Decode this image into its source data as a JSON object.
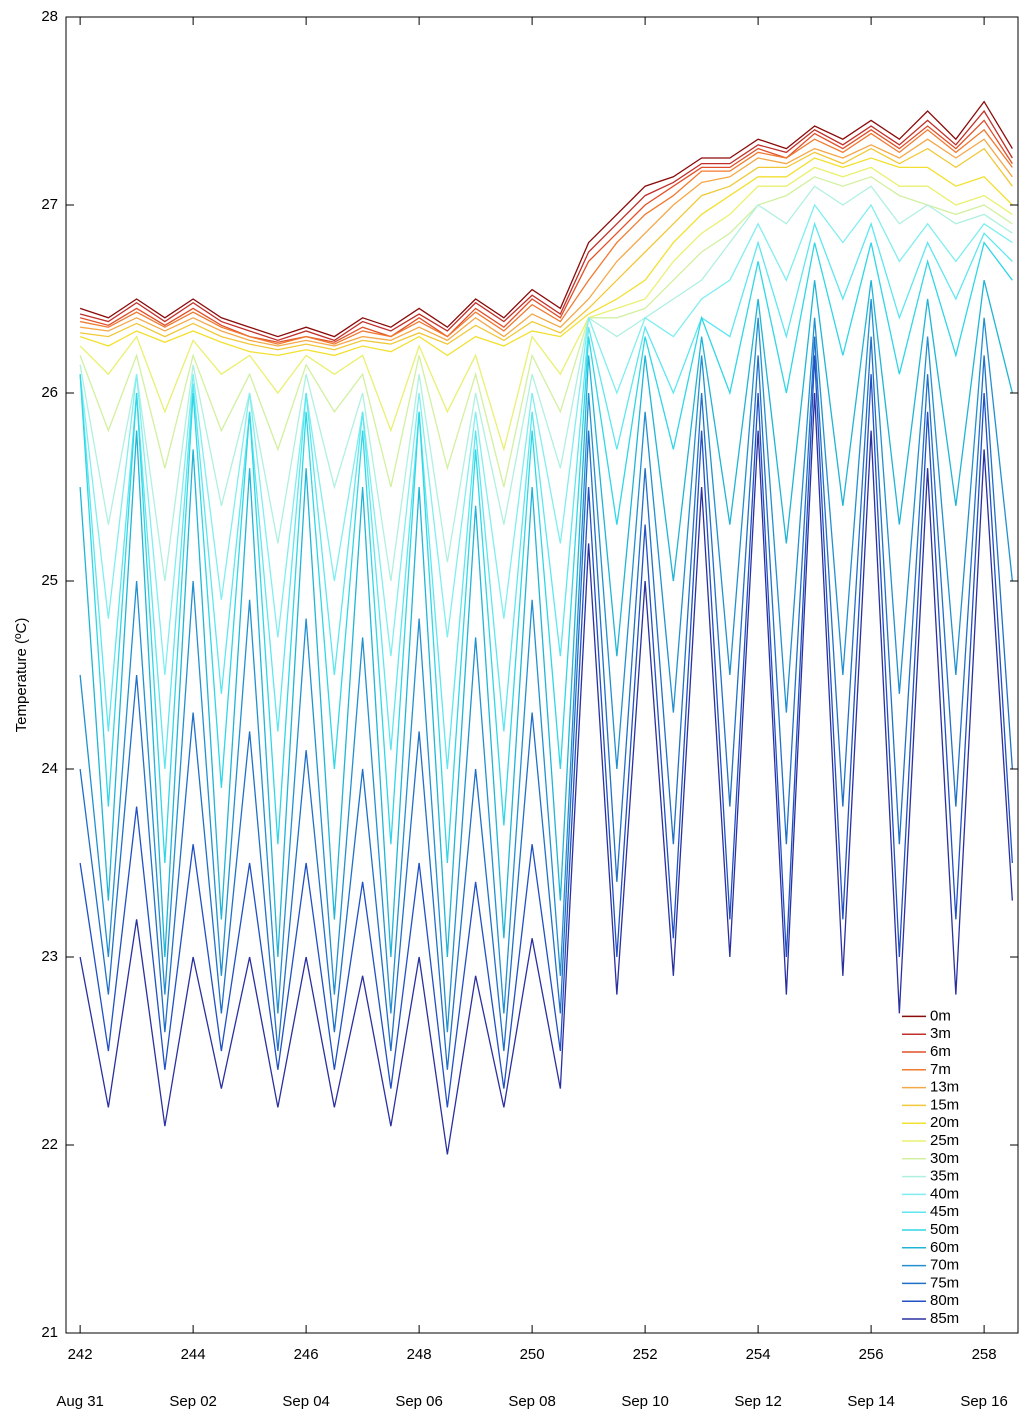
{
  "chart_data": {
    "type": "line",
    "ylabel": "Temperature (ºC)",
    "xlim": [
      241.75,
      258.6
    ],
    "ylim": [
      21,
      28
    ],
    "xticks": [
      242,
      244,
      246,
      248,
      250,
      252,
      254,
      256,
      258
    ],
    "xtick_dates": [
      "Aug 31",
      "Sep 02",
      "Sep 04",
      "Sep 06",
      "Sep 08",
      "Sep 10",
      "Sep 12",
      "Sep 14",
      "Sep 16"
    ],
    "yticks": [
      21,
      22,
      23,
      24,
      25,
      26,
      27,
      28
    ],
    "legend": "lower right",
    "x": [
      242,
      242.5,
      243,
      243.5,
      244,
      244.5,
      245,
      245.5,
      246,
      246.5,
      247,
      247.5,
      248,
      248.5,
      249,
      249.5,
      250,
      250.5,
      251,
      251.5,
      252,
      252.5,
      253,
      253.5,
      254,
      254.5,
      255,
      255.5,
      256,
      256.5,
      257,
      257.5,
      258,
      258.5
    ],
    "series": [
      {
        "name": "0m",
        "color": "#8b0a0a",
        "values": [
          26.45,
          26.4,
          26.5,
          26.4,
          26.5,
          26.4,
          26.35,
          26.3,
          26.35,
          26.3,
          26.4,
          26.35,
          26.45,
          26.35,
          26.5,
          26.4,
          26.55,
          26.45,
          26.8,
          26.95,
          27.1,
          27.15,
          27.25,
          27.25,
          27.35,
          27.3,
          27.42,
          27.35,
          27.45,
          27.35,
          27.5,
          27.35,
          27.55,
          27.3
        ]
      },
      {
        "name": "3m",
        "color": "#c0302a",
        "values": [
          26.42,
          26.38,
          26.48,
          26.38,
          26.48,
          26.38,
          26.33,
          26.28,
          26.33,
          26.28,
          26.38,
          26.33,
          26.42,
          26.33,
          26.48,
          26.38,
          26.52,
          26.42,
          26.75,
          26.9,
          27.05,
          27.12,
          27.22,
          27.22,
          27.32,
          27.28,
          27.4,
          27.32,
          27.42,
          27.32,
          27.45,
          27.32,
          27.5,
          27.25
        ]
      },
      {
        "name": "6m",
        "color": "#e0502a",
        "values": [
          26.4,
          26.36,
          26.45,
          26.36,
          26.45,
          26.36,
          26.3,
          26.27,
          26.3,
          26.27,
          26.35,
          26.3,
          26.4,
          26.3,
          26.45,
          26.35,
          26.5,
          26.4,
          26.7,
          26.85,
          27.0,
          27.1,
          27.2,
          27.2,
          27.3,
          27.25,
          27.38,
          27.3,
          27.4,
          27.3,
          27.42,
          27.3,
          27.45,
          27.22
        ]
      },
      {
        "name": "7m",
        "color": "#f07a30",
        "values": [
          26.38,
          26.35,
          26.43,
          26.35,
          26.43,
          26.35,
          26.3,
          26.26,
          26.3,
          26.26,
          26.33,
          26.3,
          26.38,
          26.3,
          26.43,
          26.33,
          26.47,
          26.38,
          26.6,
          26.8,
          26.95,
          27.05,
          27.18,
          27.18,
          27.28,
          27.25,
          27.35,
          27.28,
          27.38,
          27.28,
          27.4,
          27.28,
          27.4,
          27.2
        ]
      },
      {
        "name": "13m",
        "color": "#f4a848",
        "values": [
          26.35,
          26.33,
          26.4,
          26.33,
          26.4,
          26.33,
          26.28,
          26.25,
          26.28,
          26.25,
          26.3,
          26.28,
          26.35,
          26.28,
          26.4,
          26.3,
          26.42,
          26.35,
          26.5,
          26.7,
          26.85,
          27.0,
          27.12,
          27.15,
          27.25,
          27.22,
          27.3,
          27.25,
          27.32,
          27.25,
          27.35,
          27.25,
          27.35,
          27.15
        ]
      },
      {
        "name": "15m",
        "color": "#f0c838",
        "values": [
          26.32,
          26.3,
          26.37,
          26.3,
          26.37,
          26.3,
          26.26,
          26.23,
          26.26,
          26.23,
          26.28,
          26.26,
          26.32,
          26.26,
          26.36,
          26.28,
          26.38,
          26.32,
          26.45,
          26.6,
          26.75,
          26.9,
          27.05,
          27.1,
          27.2,
          27.2,
          27.28,
          27.22,
          27.3,
          27.22,
          27.3,
          27.2,
          27.3,
          27.1
        ]
      },
      {
        "name": "20m",
        "color": "#f2e030",
        "values": [
          26.3,
          26.25,
          26.33,
          26.27,
          26.33,
          26.27,
          26.22,
          26.2,
          26.23,
          26.2,
          26.25,
          26.22,
          26.3,
          26.2,
          26.3,
          26.25,
          26.33,
          26.3,
          26.42,
          26.5,
          26.6,
          26.8,
          26.95,
          27.05,
          27.15,
          27.15,
          27.25,
          27.2,
          27.25,
          27.2,
          27.2,
          27.1,
          27.15,
          27.0
        ]
      },
      {
        "name": "25m",
        "color": "#eaf070",
        "values": [
          26.25,
          26.1,
          26.3,
          25.9,
          26.28,
          26.1,
          26.2,
          26.0,
          26.2,
          26.1,
          26.2,
          25.8,
          26.25,
          25.9,
          26.2,
          25.7,
          26.3,
          26.1,
          26.4,
          26.45,
          26.5,
          26.7,
          26.85,
          26.95,
          27.1,
          27.1,
          27.2,
          27.15,
          27.2,
          27.1,
          27.1,
          27.0,
          27.05,
          26.95
        ]
      },
      {
        "name": "30m",
        "color": "#d2f0a0",
        "values": [
          26.2,
          25.8,
          26.2,
          25.6,
          26.2,
          25.8,
          26.1,
          25.7,
          26.15,
          25.9,
          26.1,
          25.5,
          26.2,
          25.6,
          26.1,
          25.5,
          26.2,
          25.9,
          26.4,
          26.4,
          26.45,
          26.6,
          26.75,
          26.85,
          27.0,
          27.05,
          27.15,
          27.1,
          27.15,
          27.05,
          27.0,
          26.95,
          27.0,
          26.9
        ]
      },
      {
        "name": "35m",
        "color": "#b0f0e0",
        "values": [
          26.15,
          25.3,
          26.1,
          25.0,
          26.15,
          25.4,
          26.0,
          25.2,
          26.1,
          25.5,
          26.0,
          25.0,
          26.1,
          25.1,
          26.0,
          25.3,
          26.1,
          25.6,
          26.4,
          26.3,
          26.4,
          26.5,
          26.6,
          26.8,
          27.0,
          26.9,
          27.1,
          27.0,
          27.1,
          26.9,
          27.0,
          26.9,
          26.95,
          26.85
        ]
      },
      {
        "name": "40m",
        "color": "#80eef0",
        "values": [
          26.1,
          24.8,
          26.1,
          24.5,
          26.1,
          24.9,
          26.0,
          24.7,
          26.0,
          25.0,
          25.9,
          24.6,
          26.0,
          24.7,
          25.9,
          24.8,
          26.0,
          25.2,
          26.4,
          26.0,
          26.4,
          26.3,
          26.5,
          26.6,
          26.9,
          26.6,
          27.0,
          26.8,
          27.0,
          26.7,
          26.9,
          26.7,
          26.9,
          26.8
        ]
      },
      {
        "name": "45m",
        "color": "#5ee6f0",
        "values": [
          26.1,
          24.2,
          26.0,
          24.0,
          26.05,
          24.4,
          25.9,
          24.2,
          26.0,
          24.5,
          25.9,
          24.1,
          25.9,
          24.0,
          25.8,
          24.2,
          25.9,
          24.6,
          26.35,
          25.7,
          26.35,
          26.0,
          26.4,
          26.3,
          26.8,
          26.3,
          26.9,
          26.5,
          26.9,
          26.4,
          26.8,
          26.5,
          26.85,
          26.7
        ]
      },
      {
        "name": "50m",
        "color": "#30d6e6",
        "values": [
          26.1,
          23.8,
          26.0,
          23.5,
          26.0,
          23.9,
          25.9,
          23.6,
          25.9,
          24.0,
          25.8,
          23.6,
          25.9,
          23.5,
          25.7,
          23.7,
          25.8,
          24.0,
          26.3,
          25.3,
          26.3,
          25.7,
          26.4,
          26.0,
          26.7,
          26.0,
          26.8,
          26.2,
          26.8,
          26.1,
          26.7,
          26.2,
          26.8,
          26.6
        ]
      },
      {
        "name": "60m",
        "color": "#20b4d6",
        "values": [
          25.5,
          23.3,
          25.8,
          23.0,
          25.7,
          23.2,
          25.6,
          23.0,
          25.6,
          23.2,
          25.5,
          23.0,
          25.5,
          23.0,
          25.4,
          23.1,
          25.5,
          23.3,
          26.2,
          24.6,
          26.2,
          25.0,
          26.3,
          25.3,
          26.5,
          25.2,
          26.6,
          25.4,
          26.6,
          25.3,
          26.5,
          25.4,
          26.6,
          26.0
        ]
      },
      {
        "name": "70m",
        "color": "#2290d0",
        "values": [
          24.5,
          23.0,
          25.0,
          22.8,
          25.0,
          22.9,
          24.9,
          22.7,
          24.8,
          22.8,
          24.7,
          22.7,
          24.8,
          22.6,
          24.7,
          22.7,
          24.9,
          22.9,
          26.0,
          24.0,
          25.9,
          24.3,
          26.2,
          24.5,
          26.4,
          24.3,
          26.4,
          24.5,
          26.5,
          24.4,
          26.3,
          24.5,
          26.4,
          25.0
        ]
      },
      {
        "name": "75m",
        "color": "#2070c8",
        "values": [
          24.0,
          22.8,
          24.5,
          22.6,
          24.3,
          22.7,
          24.2,
          22.5,
          24.1,
          22.6,
          24.0,
          22.5,
          24.2,
          22.4,
          24.0,
          22.5,
          24.3,
          22.7,
          25.8,
          23.4,
          25.6,
          23.6,
          26.0,
          23.8,
          26.2,
          23.6,
          26.3,
          23.8,
          26.3,
          23.6,
          26.1,
          23.8,
          26.2,
          24.0
        ]
      },
      {
        "name": "80m",
        "color": "#2050c4",
        "values": [
          23.5,
          22.5,
          23.8,
          22.4,
          23.6,
          22.5,
          23.5,
          22.4,
          23.5,
          22.4,
          23.4,
          22.3,
          23.5,
          22.2,
          23.4,
          22.3,
          23.6,
          22.5,
          25.5,
          23.0,
          25.3,
          23.1,
          25.8,
          23.2,
          26.0,
          23.0,
          26.2,
          23.2,
          26.1,
          23.0,
          25.9,
          23.2,
          26.0,
          23.5
        ]
      },
      {
        "name": "85m",
        "color": "#2a30a0",
        "values": [
          23.0,
          22.2,
          23.2,
          22.1,
          23.0,
          22.3,
          23.0,
          22.2,
          23.0,
          22.2,
          22.9,
          22.1,
          23.0,
          21.95,
          22.9,
          22.2,
          23.1,
          22.3,
          25.2,
          22.8,
          25.0,
          22.9,
          25.5,
          23.0,
          25.8,
          22.8,
          26.0,
          22.9,
          25.8,
          22.7,
          25.6,
          22.8,
          25.7,
          23.3
        ]
      }
    ]
  }
}
